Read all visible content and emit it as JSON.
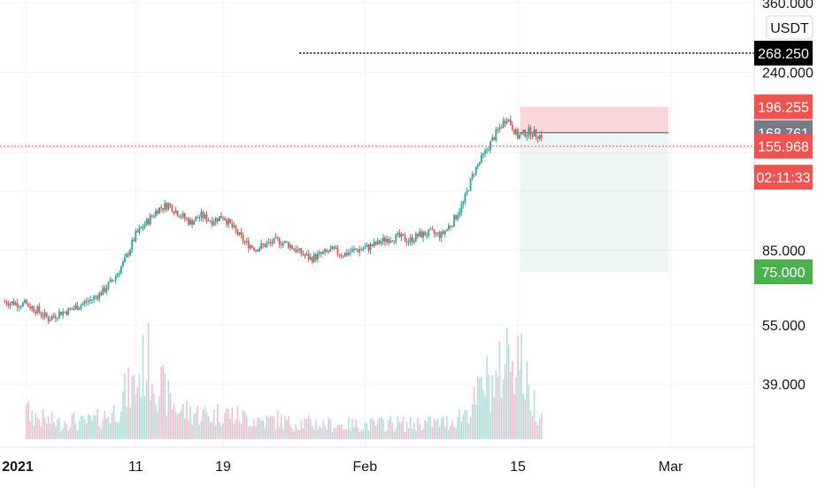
{
  "chart_data": {
    "type": "candlestick",
    "currency": "USDT",
    "y_scale": "log",
    "ylim": [
      27,
      360
    ],
    "price_ticks": [
      "360.000",
      "240.000",
      "85.000",
      "55.000",
      "39.000"
    ],
    "price_tick_values": [
      360,
      240,
      85,
      55,
      39
    ],
    "x_ticks": [
      {
        "label": "2021",
        "day": 0,
        "bold": true
      },
      {
        "label": "11",
        "day": 10,
        "bold": false
      },
      {
        "label": "19",
        "day": 18,
        "bold": false
      },
      {
        "label": "Feb",
        "day": 31,
        "bold": false
      },
      {
        "label": "15",
        "day": 45,
        "bold": false
      },
      {
        "label": "Mar",
        "day": 59,
        "bold": false
      }
    ],
    "day_range": [
      0,
      67
    ],
    "price_series": [
      [
        -2,
        63
      ],
      [
        0,
        62
      ],
      [
        1,
        60
      ],
      [
        2,
        57
      ],
      [
        3,
        59
      ],
      [
        4,
        60
      ],
      [
        5,
        62
      ],
      [
        6,
        64
      ],
      [
        7,
        67
      ],
      [
        8,
        72
      ],
      [
        9,
        80
      ],
      [
        10,
        93
      ],
      [
        11,
        100
      ],
      [
        12,
        108
      ],
      [
        13,
        111
      ],
      [
        14,
        105
      ],
      [
        15,
        100
      ],
      [
        16,
        104
      ],
      [
        17,
        101
      ],
      [
        18,
        104
      ],
      [
        19,
        96
      ],
      [
        20,
        89
      ],
      [
        21,
        86
      ],
      [
        22,
        88
      ],
      [
        23,
        90
      ],
      [
        24,
        88
      ],
      [
        25,
        84
      ],
      [
        26,
        81
      ],
      [
        27,
        83
      ],
      [
        28,
        85
      ],
      [
        29,
        83
      ],
      [
        30,
        85
      ],
      [
        31,
        86
      ],
      [
        32,
        88
      ],
      [
        33,
        91
      ],
      [
        34,
        92
      ],
      [
        35,
        90
      ],
      [
        36,
        93
      ],
      [
        37,
        94
      ],
      [
        38,
        93
      ],
      [
        39,
        100
      ],
      [
        40,
        112
      ],
      [
        41,
        135
      ],
      [
        42,
        150
      ],
      [
        43,
        168
      ],
      [
        44,
        185
      ],
      [
        45,
        165
      ],
      [
        46,
        170
      ],
      [
        47,
        166
      ]
    ],
    "volume_series": [
      [
        0,
        1.5
      ],
      [
        1,
        1.2
      ],
      [
        2,
        1.0
      ],
      [
        3,
        0.9
      ],
      [
        4,
        1.1
      ],
      [
        5,
        0.9
      ],
      [
        6,
        1.0
      ],
      [
        7,
        1.2
      ],
      [
        8,
        1.5
      ],
      [
        9,
        2.5
      ],
      [
        10,
        3.0
      ],
      [
        11,
        4.5
      ],
      [
        12,
        3.2
      ],
      [
        13,
        2.2
      ],
      [
        14,
        1.6
      ],
      [
        15,
        1.5
      ],
      [
        16,
        1.4
      ],
      [
        17,
        1.3
      ],
      [
        18,
        1.5
      ],
      [
        19,
        1.3
      ],
      [
        20,
        1.2
      ],
      [
        21,
        1.1
      ],
      [
        22,
        1.0
      ],
      [
        23,
        1.1
      ],
      [
        24,
        0.9
      ],
      [
        25,
        0.9
      ],
      [
        26,
        0.9
      ],
      [
        27,
        0.8
      ],
      [
        28,
        0.8
      ],
      [
        29,
        0.8
      ],
      [
        30,
        0.8
      ],
      [
        31,
        0.8
      ],
      [
        32,
        0.8
      ],
      [
        33,
        0.9
      ],
      [
        34,
        0.9
      ],
      [
        35,
        0.8
      ],
      [
        36,
        0.9
      ],
      [
        37,
        0.9
      ],
      [
        38,
        0.9
      ],
      [
        39,
        1.0
      ],
      [
        40,
        1.4
      ],
      [
        41,
        2.0
      ],
      [
        42,
        3.2
      ],
      [
        43,
        3.0
      ],
      [
        44,
        4.8
      ],
      [
        45,
        5.0
      ],
      [
        46,
        2.5
      ],
      [
        47,
        1.5
      ]
    ],
    "volume_max": 5.0,
    "alert_line_value": 268.25,
    "alert_line_start_day": 25,
    "last_price_line_value": 155.968,
    "position": {
      "start_day": 45.2,
      "end_day": 58.8,
      "entry": 168.761,
      "stop": 196.255,
      "target": 75.0
    },
    "price_labels": [
      {
        "text": "268.250",
        "value": 268.25,
        "bg": "#000000",
        "fg": "#ffffff"
      },
      {
        "text": "196.255",
        "value": 196.255,
        "bg": "#ef5350",
        "fg": "#ffffff"
      },
      {
        "text": "168.761",
        "value": 168.761,
        "bg": "#787b86",
        "fg": "#ffffff"
      },
      {
        "text": "155.968",
        "value": 155.968,
        "bg": "#ef5350",
        "fg": "#ffffff"
      },
      {
        "text": "02:11:33",
        "value": 155.968,
        "bg": "#ef5350",
        "fg": "#ffffff",
        "below": true
      },
      {
        "text": "75.000",
        "value": 75.0,
        "bg": "#4caf50",
        "fg": "#ffffff"
      }
    ],
    "colors": {
      "up": "#26a69a",
      "down": "#ef5350",
      "vol_up": "#b2dfdb",
      "vol_down": "#f8bbd0",
      "grid": "#f0f3fa",
      "stop_zone": "rgba(242,54,69,0.2)",
      "target_zone": "rgba(8,153,129,0.08)"
    }
  }
}
